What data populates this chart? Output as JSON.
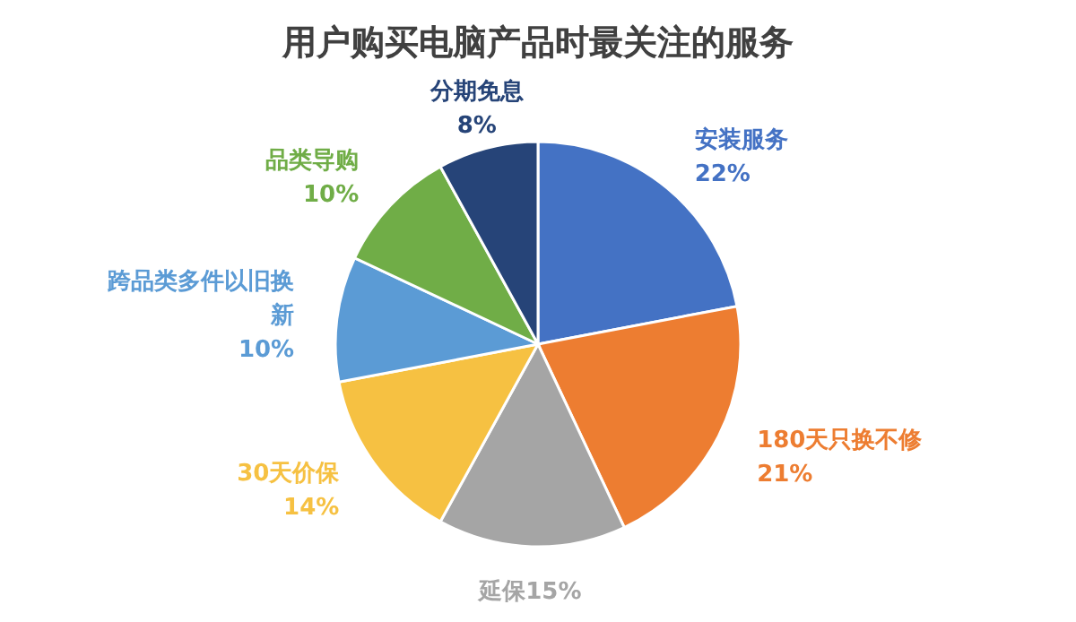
{
  "chart_data": {
    "type": "pie",
    "title": "用户购买电脑产品时最关注的服务",
    "categories": [
      "安装服务",
      "180天只换不修",
      "延保",
      "30天价保",
      "跨品类多件以旧换新",
      "品类导购",
      "分期免息"
    ],
    "values": [
      22,
      21,
      15,
      14,
      10,
      10,
      8
    ],
    "colors": [
      "#4472c4",
      "#ed7d31",
      "#a5a5a5",
      "#f6c142",
      "#5b9bd5",
      "#70ad47",
      "#264478"
    ],
    "value_labels": [
      "22%",
      "21%",
      "15%",
      "14%",
      "10%",
      "10%",
      "8%"
    ]
  }
}
